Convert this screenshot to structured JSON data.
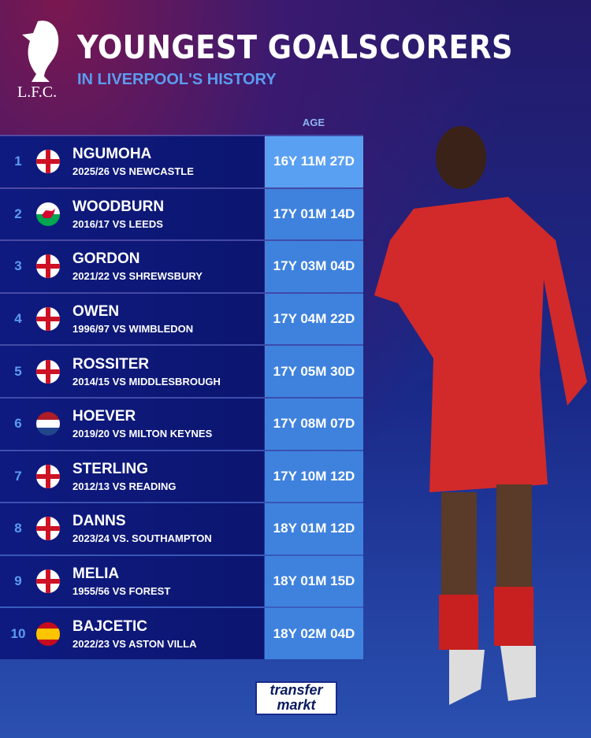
{
  "header": {
    "logo_text": "L.F.C.",
    "title": "YOUNGEST GOALSCORERS",
    "subtitle": "IN LIVERPOOL'S HISTORY",
    "age_column": "AGE"
  },
  "rows": [
    {
      "rank": "1",
      "flag": "england",
      "name": "NGUMOHA",
      "match": "2025/26 VS NEWCASTLE",
      "age": "16Y 11M 27D"
    },
    {
      "rank": "2",
      "flag": "wales",
      "name": "WOODBURN",
      "match": "2016/17 VS LEEDS",
      "age": "17Y 01M 14D"
    },
    {
      "rank": "3",
      "flag": "england",
      "name": "GORDON",
      "match": "2021/22 VS SHREWSBURY",
      "age": "17Y 03M 04D"
    },
    {
      "rank": "4",
      "flag": "england",
      "name": "OWEN",
      "match": "1996/97 VS WIMBLEDON",
      "age": "17Y 04M 22D"
    },
    {
      "rank": "5",
      "flag": "england",
      "name": "ROSSITER",
      "match": "2014/15 VS MIDDLESBROUGH",
      "age": "17Y 05M 30D"
    },
    {
      "rank": "6",
      "flag": "netherlands",
      "name": "HOEVER",
      "match": "2019/20 VS MILTON KEYNES",
      "age": "17Y 08M 07D"
    },
    {
      "rank": "7",
      "flag": "england",
      "name": "STERLING",
      "match": "2012/13 VS READING",
      "age": "17Y 10M 12D"
    },
    {
      "rank": "8",
      "flag": "england",
      "name": "DANNS",
      "match": "2023/24 VS. SOUTHAMPTON",
      "age": "18Y 01M 12D"
    },
    {
      "rank": "9",
      "flag": "england",
      "name": "MELIA",
      "match": "1955/56 VS FOREST",
      "age": "18Y 01M 15D"
    },
    {
      "rank": "10",
      "flag": "spain",
      "name": "BAJCETIC",
      "match": "2022/23 VS ASTON VILLA",
      "age": "18Y 02M 04D"
    }
  ],
  "footer": {
    "brand_line1": "transfer",
    "brand_line2": "markt"
  },
  "colors": {
    "accent": "#5b9cf0",
    "age_box": "#3f82de",
    "age_box_first": "#5aa0f2",
    "row_bg": "#0e1a80"
  }
}
